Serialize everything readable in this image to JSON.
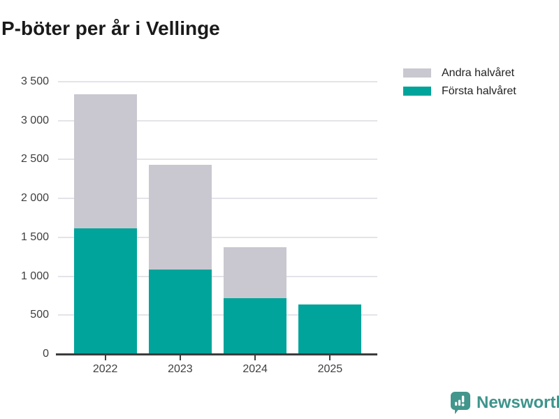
{
  "title": "P-böter per år i Vellinge",
  "legend": {
    "items": [
      {
        "label": "Andra halvåret",
        "color": "#c9c8d0"
      },
      {
        "label": "Första halvåret",
        "color": "#00a49a"
      }
    ]
  },
  "chart_data": {
    "type": "bar",
    "stacked": true,
    "title": "P-böter per år i Vellinge",
    "categories": [
      "2022",
      "2023",
      "2024",
      "2025"
    ],
    "series": [
      {
        "name": "Första halvåret",
        "color": "#00a49a",
        "values": [
          1615,
          1090,
          715,
          635
        ]
      },
      {
        "name": "Andra halvåret",
        "color": "#c9c8d0",
        "values": [
          1720,
          1345,
          655,
          0
        ]
      }
    ],
    "totals": [
      3335,
      2435,
      1370,
      635
    ],
    "xlabel": "",
    "ylabel": "",
    "ylim": [
      0,
      3500
    ],
    "ytick_step": 500,
    "ytick_labels": [
      "0",
      "500",
      "1 000",
      "1 500",
      "2 000",
      "2 500",
      "3 000",
      "3 500"
    ],
    "grid": true,
    "legend_position": "top-right"
  },
  "footer": {
    "brand": "Newsworthy"
  },
  "colors": {
    "first_half": "#00a49a",
    "second_half": "#c9c8d0",
    "axis": "#3c3c3c",
    "gridline": "#e4e3e8",
    "brand": "#3d948b"
  }
}
